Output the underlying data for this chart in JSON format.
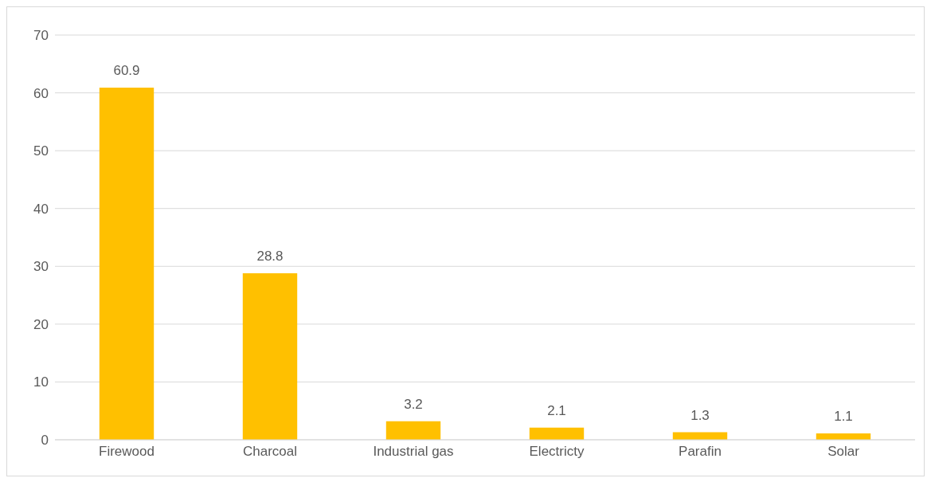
{
  "chart_data": {
    "type": "bar",
    "categories": [
      "Firewood",
      "Charcoal",
      "Industrial gas",
      "Electricty",
      "Parafin",
      "Solar"
    ],
    "values": [
      60.9,
      28.8,
      3.2,
      2.1,
      1.3,
      1.1
    ],
    "color": "#ffc000",
    "data_labels": true,
    "ylim": [
      0,
      70
    ],
    "yticks": [
      0,
      10,
      20,
      30,
      40,
      50,
      60,
      70
    ],
    "grid": "y"
  }
}
